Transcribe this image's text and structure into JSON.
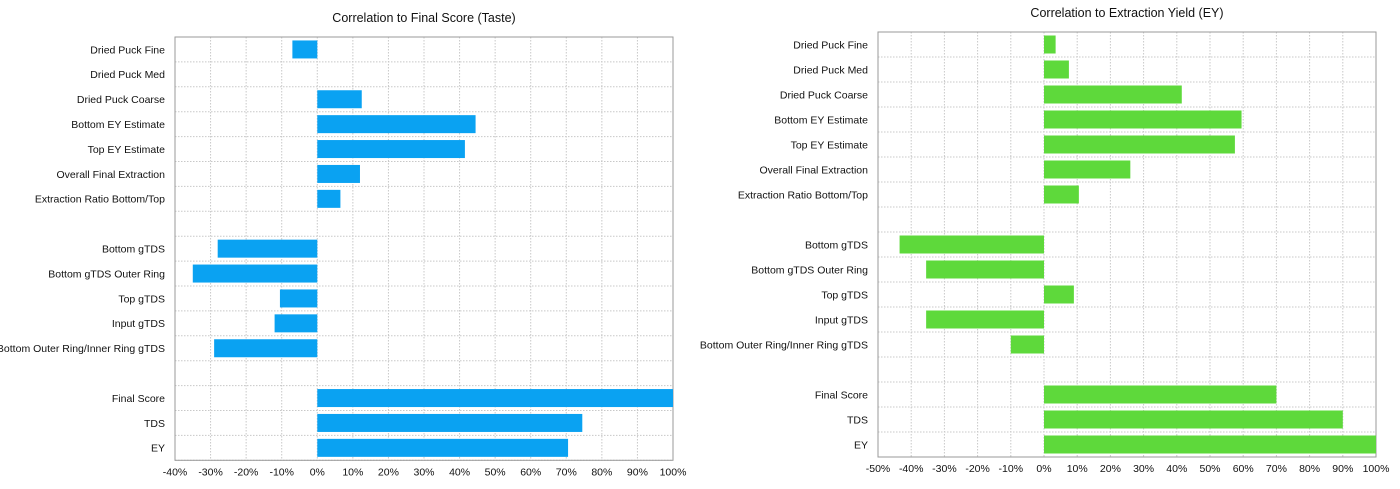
{
  "chart_data": [
    {
      "type": "bar",
      "orientation": "horizontal",
      "title": "Correlation to Final Score (Taste)",
      "xlabel": "",
      "ylabel": "",
      "xlim": [
        -40,
        100
      ],
      "x_ticks": [
        "-40%",
        "-30%",
        "-20%",
        "-10%",
        "0%",
        "10%",
        "20%",
        "30%",
        "40%",
        "50%",
        "60%",
        "70%",
        "80%",
        "90%",
        "100%"
      ],
      "grid": true,
      "color": "#0aa2f2",
      "categories": [
        "Dried Puck Fine",
        "Dried Puck Med",
        "Dried Puck Coarse",
        "Bottom EY Estimate",
        "Top EY Estimate",
        "Overall Final Extraction",
        "Extraction Ratio Bottom/Top",
        "",
        "Bottom gTDS",
        "Bottom gTDS Outer Ring",
        "Top gTDS",
        "Input gTDS",
        "Bottom Outer Ring/Inner Ring gTDS",
        "",
        "Final Score",
        "TDS",
        "EY"
      ],
      "values": [
        -7,
        null,
        12.5,
        44.5,
        41.5,
        12,
        6.5,
        null,
        -28,
        -35,
        -10.5,
        -12,
        -29,
        null,
        100,
        74.5,
        70.5
      ]
    },
    {
      "type": "bar",
      "orientation": "horizontal",
      "title": "Correlation to Extraction Yield (EY)",
      "xlabel": "",
      "ylabel": "",
      "xlim": [
        -50,
        100
      ],
      "x_ticks": [
        "-50%",
        "-40%",
        "-30%",
        "-20%",
        "-10%",
        "0%",
        "10%",
        "20%",
        "30%",
        "40%",
        "50%",
        "60%",
        "70%",
        "80%",
        "90%",
        "100%"
      ],
      "grid": true,
      "color": "#5ed93b",
      "categories": [
        "Dried Puck Fine",
        "Dried Puck Med",
        "Dried Puck Coarse",
        "Bottom EY Estimate",
        "Top EY Estimate",
        "Overall Final Extraction",
        "Extraction Ratio Bottom/Top",
        "",
        "Bottom gTDS",
        "Bottom gTDS Outer Ring",
        "Top gTDS",
        "Input gTDS",
        "Bottom Outer Ring/Inner Ring gTDS",
        "",
        "Final Score",
        "TDS",
        "EY"
      ],
      "values": [
        3.5,
        7.5,
        41.5,
        59.5,
        57.5,
        26,
        10.5,
        null,
        -43.5,
        -35.5,
        9,
        -35.5,
        -10,
        null,
        70,
        90,
        100
      ]
    }
  ]
}
